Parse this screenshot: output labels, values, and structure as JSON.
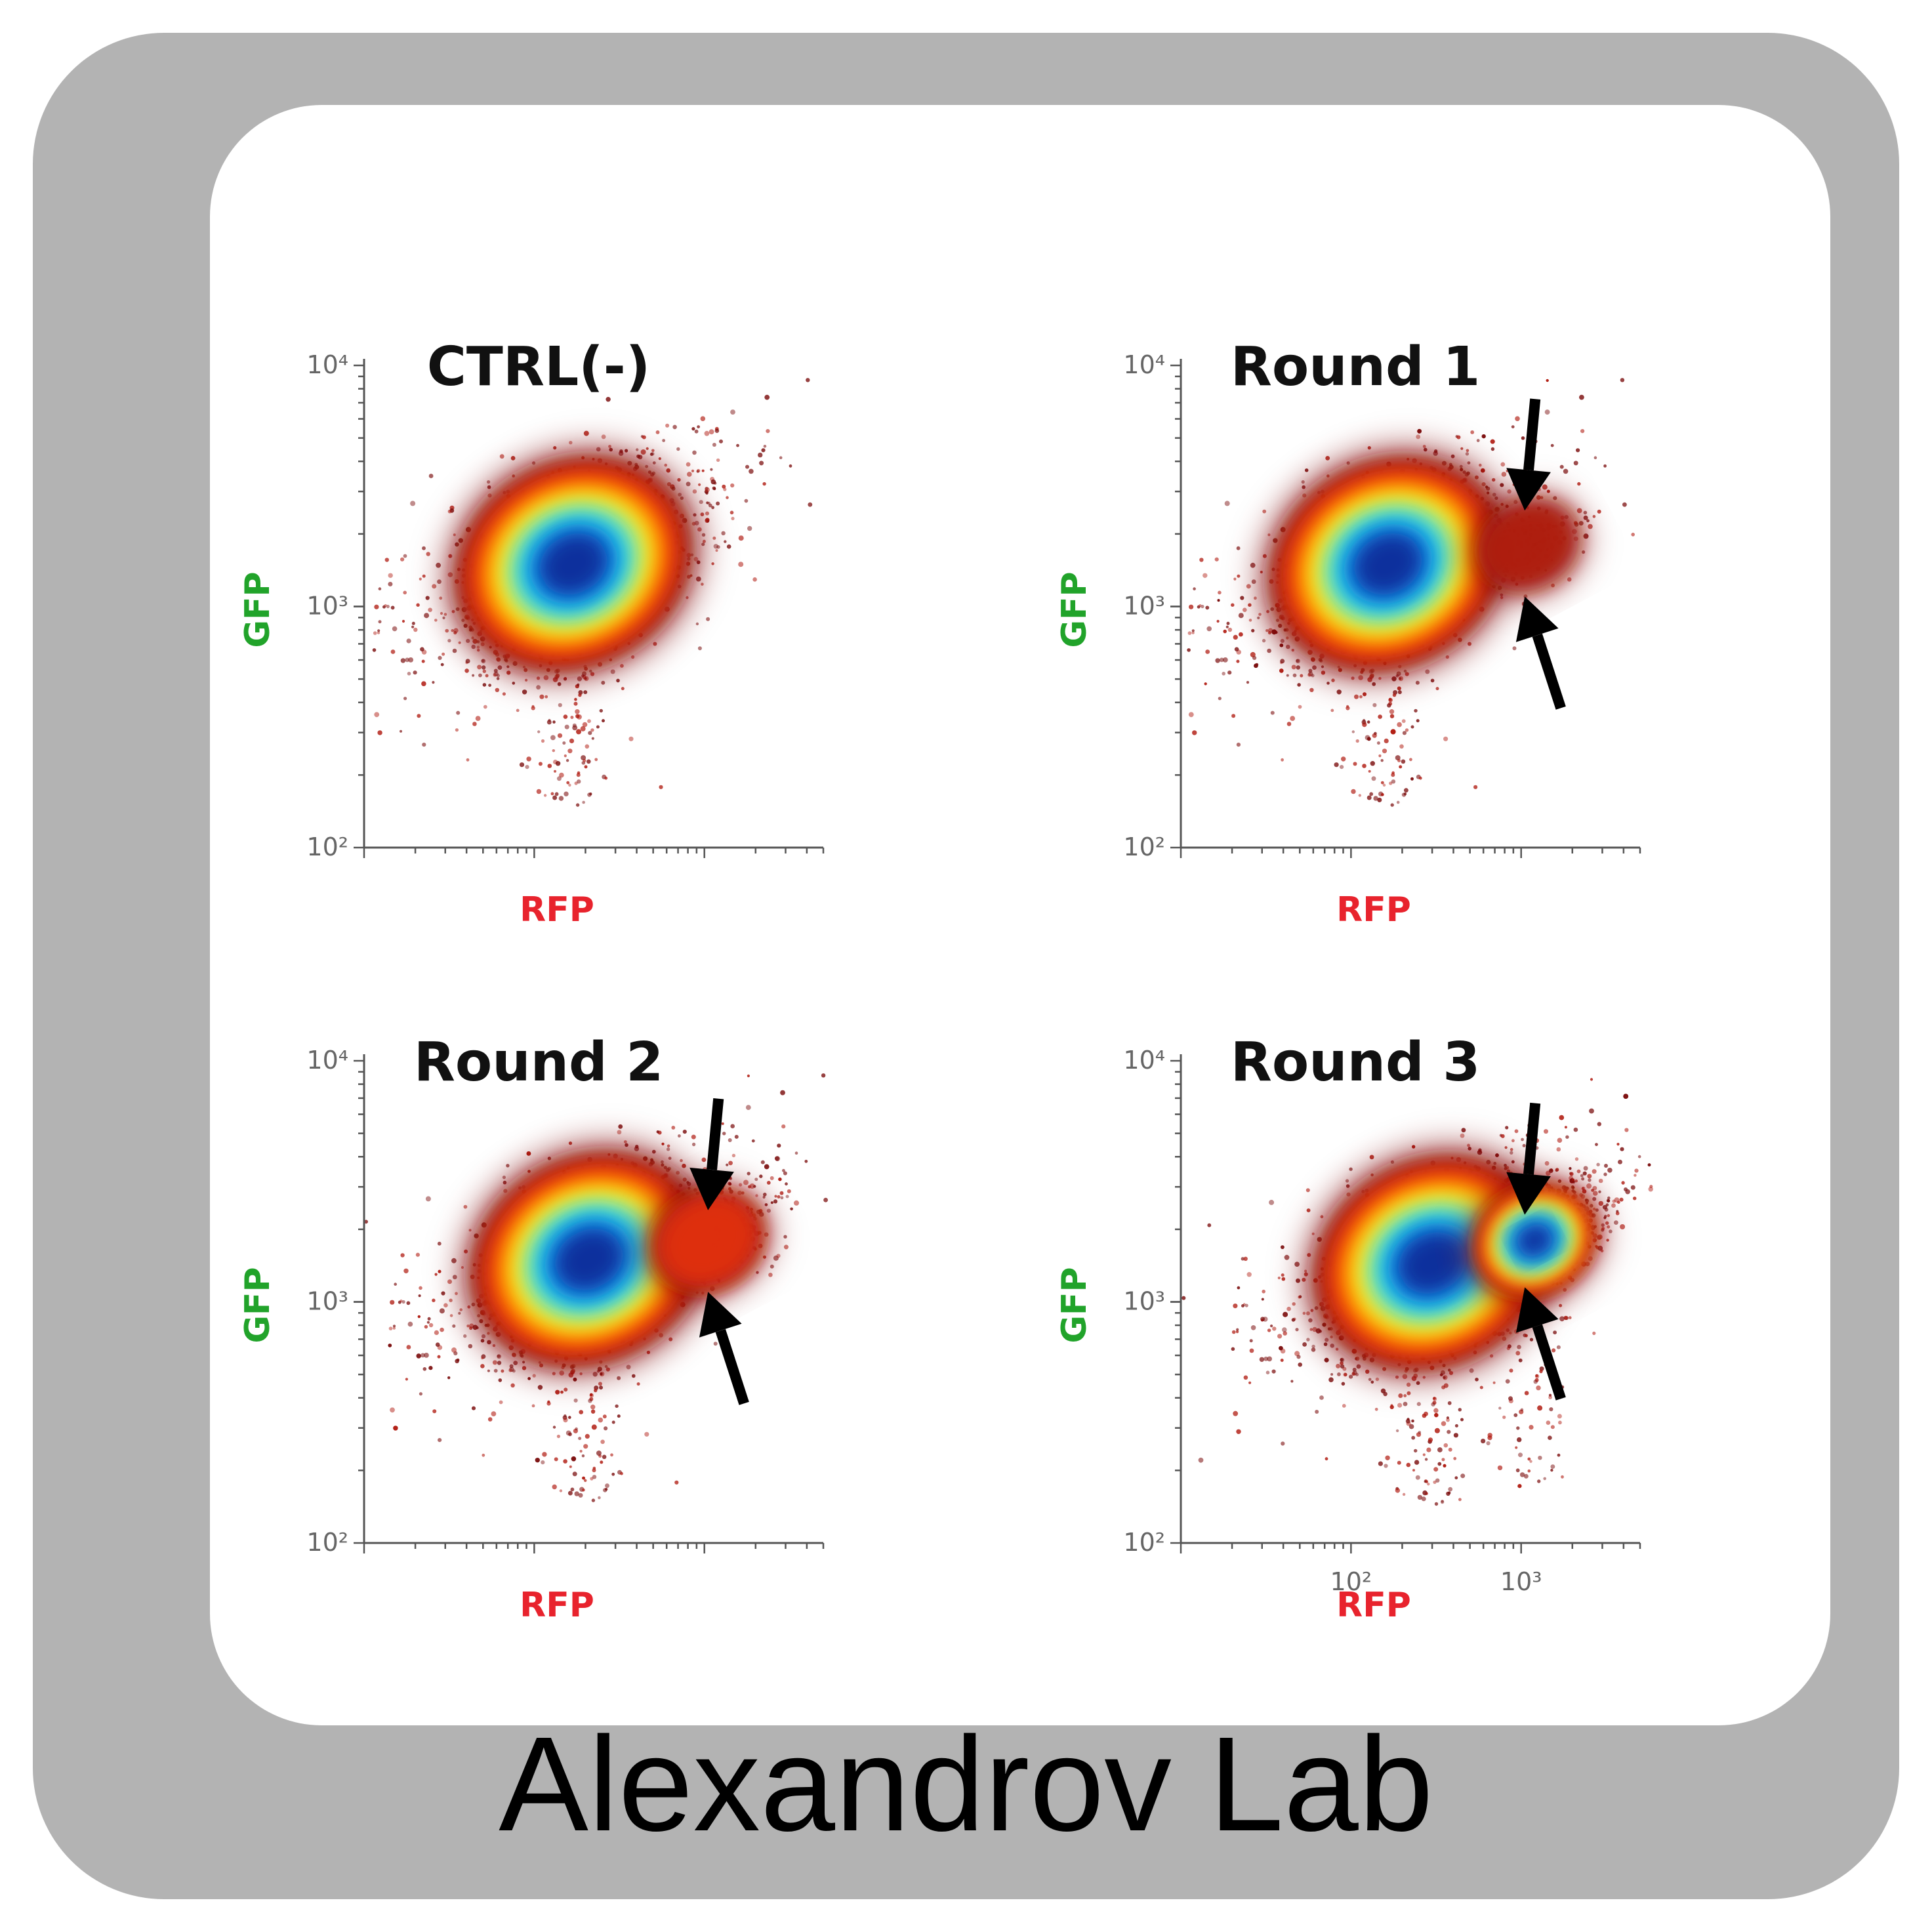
{
  "caption": "Alexandrov Lab",
  "colors": {
    "frame": "#b3b3b3",
    "panel": "#ffffff",
    "xlabel": "#e8232d",
    "ylabel": "#21a32a",
    "axis": "#555555",
    "arrow": "#000000",
    "density_scale": [
      "#7a0b0b",
      "#b01a10",
      "#e0300c",
      "#ff6a00",
      "#ffc400",
      "#e8f24a",
      "#6fe3b0",
      "#22c8f0",
      "#0a7de0",
      "#0a2d9a"
    ]
  },
  "chart_data": [
    {
      "type": "scatter",
      "title": "CTRL(-)",
      "xlabel": "RFP",
      "ylabel": "GFP",
      "x_scale": "log",
      "y_scale": "log",
      "ylim": [
        100,
        10000
      ],
      "xlim": [
        10,
        5000
      ],
      "y_tick_labels": [
        "10²",
        "10³",
        "10⁴"
      ],
      "x_tick_labels": [],
      "populations": [
        {
          "name": "",
          "center": [
            170,
            1500
          ],
          "spread": 0.42,
          "weight": 1.0
        }
      ],
      "arrows": []
    },
    {
      "type": "scatter",
      "title": "Round 1",
      "xlabel": "RFP",
      "ylabel": "GFP",
      "x_scale": "log",
      "y_scale": "log",
      "ylim": [
        100,
        10000
      ],
      "xlim": [
        10,
        5000
      ],
      "y_tick_labels": [
        "10²",
        "10³",
        "10⁴"
      ],
      "x_tick_labels": [],
      "populations": [
        {
          "name": "",
          "center": [
            165,
            1500
          ],
          "spread": 0.42,
          "weight": 1.0
        },
        {
          "name": "",
          "center": [
            1100,
            1800
          ],
          "spread": 0.18,
          "weight": 0.05
        }
      ],
      "arrows": [
        {
          "points_to": [
            1050,
            2500
          ],
          "direction": "down"
        },
        {
          "points_to": [
            1050,
            1100
          ],
          "direction": "up"
        }
      ]
    },
    {
      "type": "scatter",
      "title": "Round 2",
      "xlabel": "RFP",
      "ylabel": "GFP",
      "x_scale": "log",
      "y_scale": "log",
      "ylim": [
        100,
        10000
      ],
      "xlim": [
        10,
        5000
      ],
      "y_tick_labels": [
        "10²",
        "10³",
        "10⁴"
      ],
      "x_tick_labels": [],
      "populations": [
        {
          "name": "",
          "center": [
            210,
            1500
          ],
          "spread": 0.42,
          "weight": 1.0
        },
        {
          "name": "",
          "center": [
            1050,
            1800
          ],
          "spread": 0.2,
          "weight": 0.18
        }
      ],
      "arrows": [
        {
          "points_to": [
            1050,
            2400
          ],
          "direction": "down"
        },
        {
          "points_to": [
            1050,
            1100
          ],
          "direction": "up"
        }
      ]
    },
    {
      "type": "scatter",
      "title": "Round 3",
      "xlabel": "RFP",
      "ylabel": "GFP",
      "x_scale": "log",
      "y_scale": "log",
      "ylim": [
        100,
        10000
      ],
      "xlim": [
        10,
        5000
      ],
      "y_tick_labels": [
        "10²",
        "10³",
        "10⁴"
      ],
      "x_tick_labels": [
        "10²",
        "10³"
      ],
      "populations": [
        {
          "name": "",
          "center": [
            300,
            1450
          ],
          "spread": 0.42,
          "weight": 1.0
        },
        {
          "name": "",
          "center": [
            1200,
            1800
          ],
          "spread": 0.22,
          "weight": 0.55
        }
      ],
      "arrows": [
        {
          "points_to": [
            1050,
            2300
          ],
          "direction": "down"
        },
        {
          "points_to": [
            1050,
            1150
          ],
          "direction": "up"
        }
      ]
    }
  ]
}
